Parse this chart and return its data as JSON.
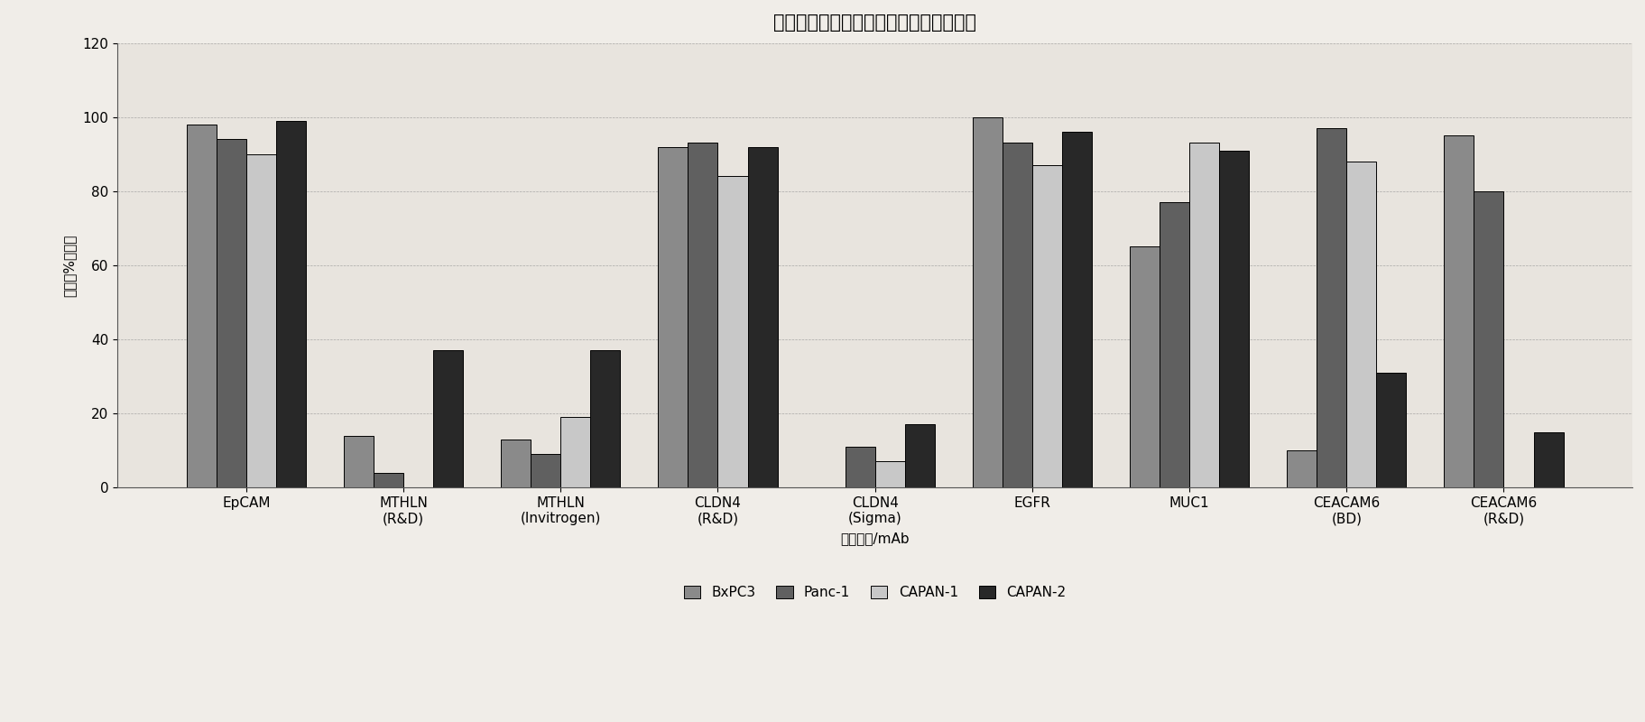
{
  "title": "对于多种捕获靶阳性的细胞的平均百分比",
  "xlabel": "测试的靶/mAb",
  "ylabel": "平均（%）阳性",
  "categories": [
    "EpCAM",
    "MTHLN\n(R&D)",
    "MTHLN\n(Invitrogen)",
    "CLDN4\n(R&D)",
    "CLDN4\n(Sigma)",
    "EGFR",
    "MUC1",
    "CEACAM6\n(BD)",
    "CEACAM6\n(R&D)"
  ],
  "series_names": [
    "BxPC3",
    "Panc-1",
    "CAPAN-1",
    "CAPAN-2"
  ],
  "series": {
    "BxPC3": [
      98,
      14,
      13,
      92,
      0,
      100,
      65,
      10,
      95
    ],
    "Panc-1": [
      94,
      4,
      9,
      93,
      11,
      93,
      77,
      97,
      80
    ],
    "CAPAN-1": [
      90,
      0,
      19,
      84,
      7,
      87,
      93,
      88,
      0
    ],
    "CAPAN-2": [
      99,
      37,
      37,
      92,
      17,
      96,
      91,
      31,
      15
    ]
  },
  "ylim": [
    0,
    120
  ],
  "yticks": [
    0,
    20,
    40,
    60,
    80,
    100,
    120
  ],
  "bar_width": 0.19,
  "background_color": "#f0ede8",
  "plot_bg_color": "#e8e4de",
  "title_fontsize": 15,
  "axis_fontsize": 11,
  "tick_fontsize": 11,
  "legend_fontsize": 11
}
